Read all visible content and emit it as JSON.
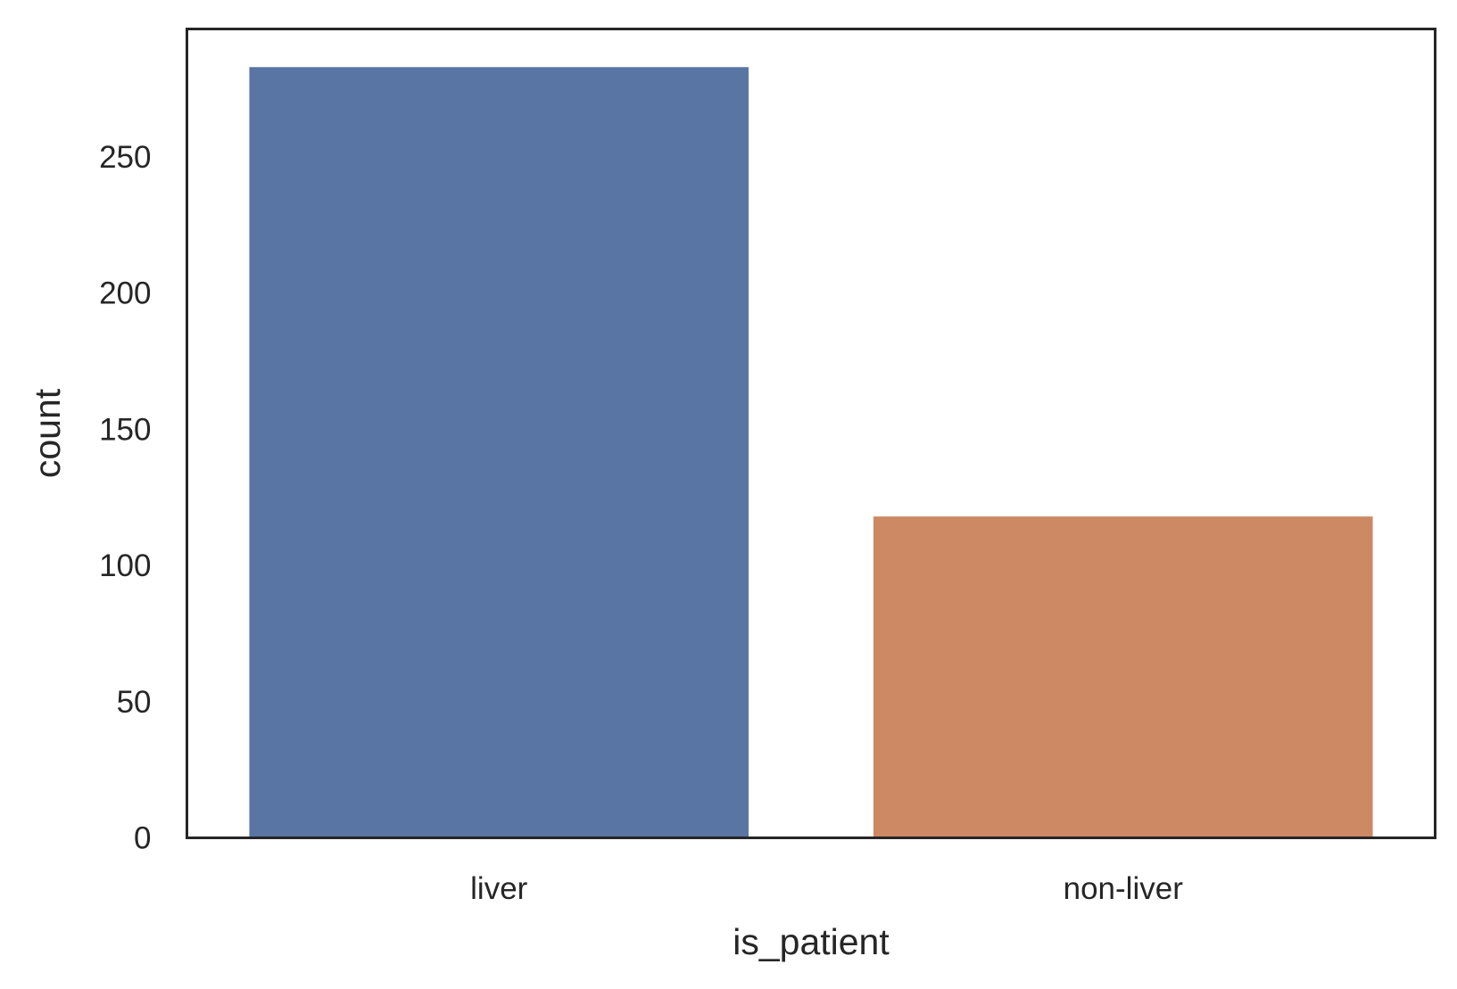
{
  "chart_data": {
    "type": "bar",
    "categories": [
      "liver",
      "non-liver"
    ],
    "values": [
      283,
      118
    ],
    "xlabel": "is_patient",
    "ylabel": "count",
    "ylim": [
      0,
      297
    ],
    "yticks": [
      0,
      50,
      100,
      150,
      200,
      250
    ],
    "grid": false,
    "legend": "none",
    "colors": [
      "#5975a4",
      "#cc8963"
    ],
    "frame_color": "#262626"
  }
}
